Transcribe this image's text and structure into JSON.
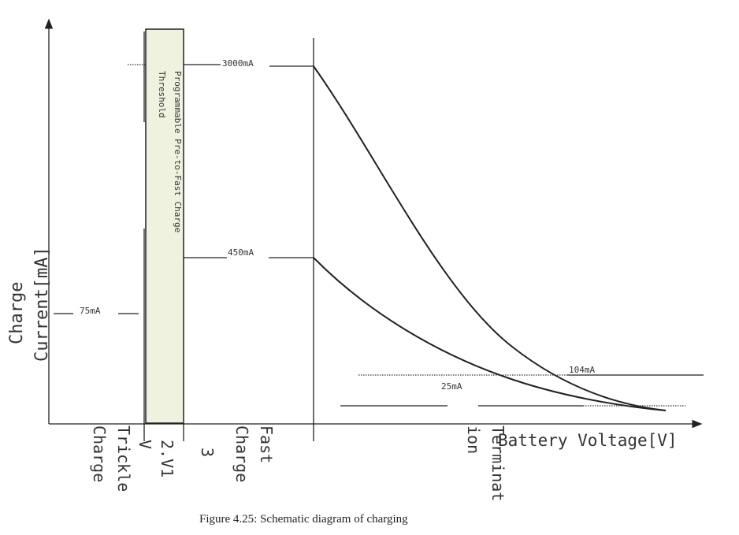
{
  "axes": {
    "y_label_line1": "Charge",
    "y_label_line2": "Current[mA]",
    "x_label": "Battery Voltage[V]"
  },
  "band": {
    "label_line1": "Programmable Pre-to-Fast Charge",
    "label_line2": "Threshold",
    "fill": "#eef2df",
    "stroke": "#222222"
  },
  "levels": {
    "fast_high": "3000mA",
    "fast_low": "450mA",
    "trickle": "75mA",
    "termination_high": "104mA",
    "termination_low": "25mA"
  },
  "x_markers": {
    "voltage_2v1": "2.V1",
    "v_suffix": "V",
    "three": "3"
  },
  "phases": {
    "trickle_line1": "Trickle",
    "trickle_line2": "Charge",
    "fast_line1": "Fast",
    "fast_line2": "Charge",
    "termination_line1": "Terminat",
    "termination_line2": "ion"
  },
  "caption": "Figure 4.25: Schematic diagram of charging"
}
